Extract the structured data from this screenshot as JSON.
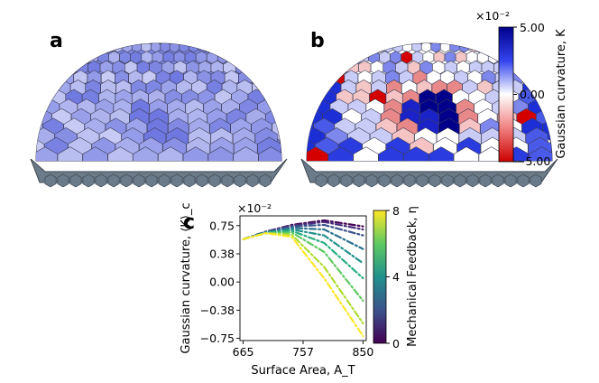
{
  "panels": {
    "a": {
      "label": "a"
    },
    "b": {
      "label": "b"
    },
    "c": {
      "label": "c"
    }
  },
  "colorbar_K": {
    "label": "Gaussian curvature, K",
    "exponent": "×10⁻²",
    "ticks": [
      "5.00",
      "0.00",
      "−5.00"
    ],
    "range": [
      -5,
      5
    ],
    "colors": {
      "high": "#00008b",
      "mid": "#ffffff",
      "low": "#cc0000"
    }
  },
  "colorbar_eta": {
    "label": "Mechanical Feedback, η",
    "ticks": [
      "8",
      "4",
      "0"
    ],
    "range": [
      0,
      8
    ],
    "colormap": "viridis"
  },
  "chart_data": {
    "type": "line",
    "title": "",
    "xlabel": "Surface Area, A_T",
    "ylabel": "Gaussian curvature, ⟨K⟩_c",
    "y_exponent": "×10⁻²",
    "xlim": [
      660,
      855
    ],
    "ylim": [
      -0.78,
      0.88
    ],
    "xticks": [
      "665",
      "757",
      "850"
    ],
    "yticks": [
      "0.75",
      "0.38",
      "0.00",
      "−0.38",
      "−0.75"
    ],
    "line_style": "dash-dot",
    "series": [
      {
        "eta": 0,
        "x": [
          665,
          700,
          740,
          790,
          850
        ],
        "y": [
          0.57,
          0.67,
          0.76,
          0.82,
          0.74
        ]
      },
      {
        "eta": 1,
        "x": [
          665,
          700,
          740,
          790,
          850
        ],
        "y": [
          0.57,
          0.67,
          0.75,
          0.8,
          0.7
        ]
      },
      {
        "eta": 2,
        "x": [
          665,
          700,
          740,
          790,
          850
        ],
        "y": [
          0.57,
          0.67,
          0.74,
          0.76,
          0.62
        ]
      },
      {
        "eta": 3,
        "x": [
          665,
          700,
          740,
          790,
          850
        ],
        "y": [
          0.57,
          0.66,
          0.72,
          0.7,
          0.44
        ]
      },
      {
        "eta": 4,
        "x": [
          665,
          700,
          740,
          790,
          850
        ],
        "y": [
          0.57,
          0.66,
          0.7,
          0.62,
          0.25
        ]
      },
      {
        "eta": 5,
        "x": [
          665,
          700,
          740,
          790,
          850
        ],
        "y": [
          0.57,
          0.66,
          0.68,
          0.52,
          0.05
        ]
      },
      {
        "eta": 6,
        "x": [
          665,
          700,
          740,
          790,
          850
        ],
        "y": [
          0.57,
          0.65,
          0.66,
          0.4,
          -0.25
        ]
      },
      {
        "eta": 7,
        "x": [
          665,
          700,
          740,
          790,
          850
        ],
        "y": [
          0.57,
          0.65,
          0.63,
          0.2,
          -0.55
        ]
      },
      {
        "eta": 8,
        "x": [
          665,
          700,
          740,
          790,
          850
        ],
        "y": [
          0.57,
          0.65,
          0.6,
          0.05,
          -0.72
        ]
      }
    ]
  }
}
